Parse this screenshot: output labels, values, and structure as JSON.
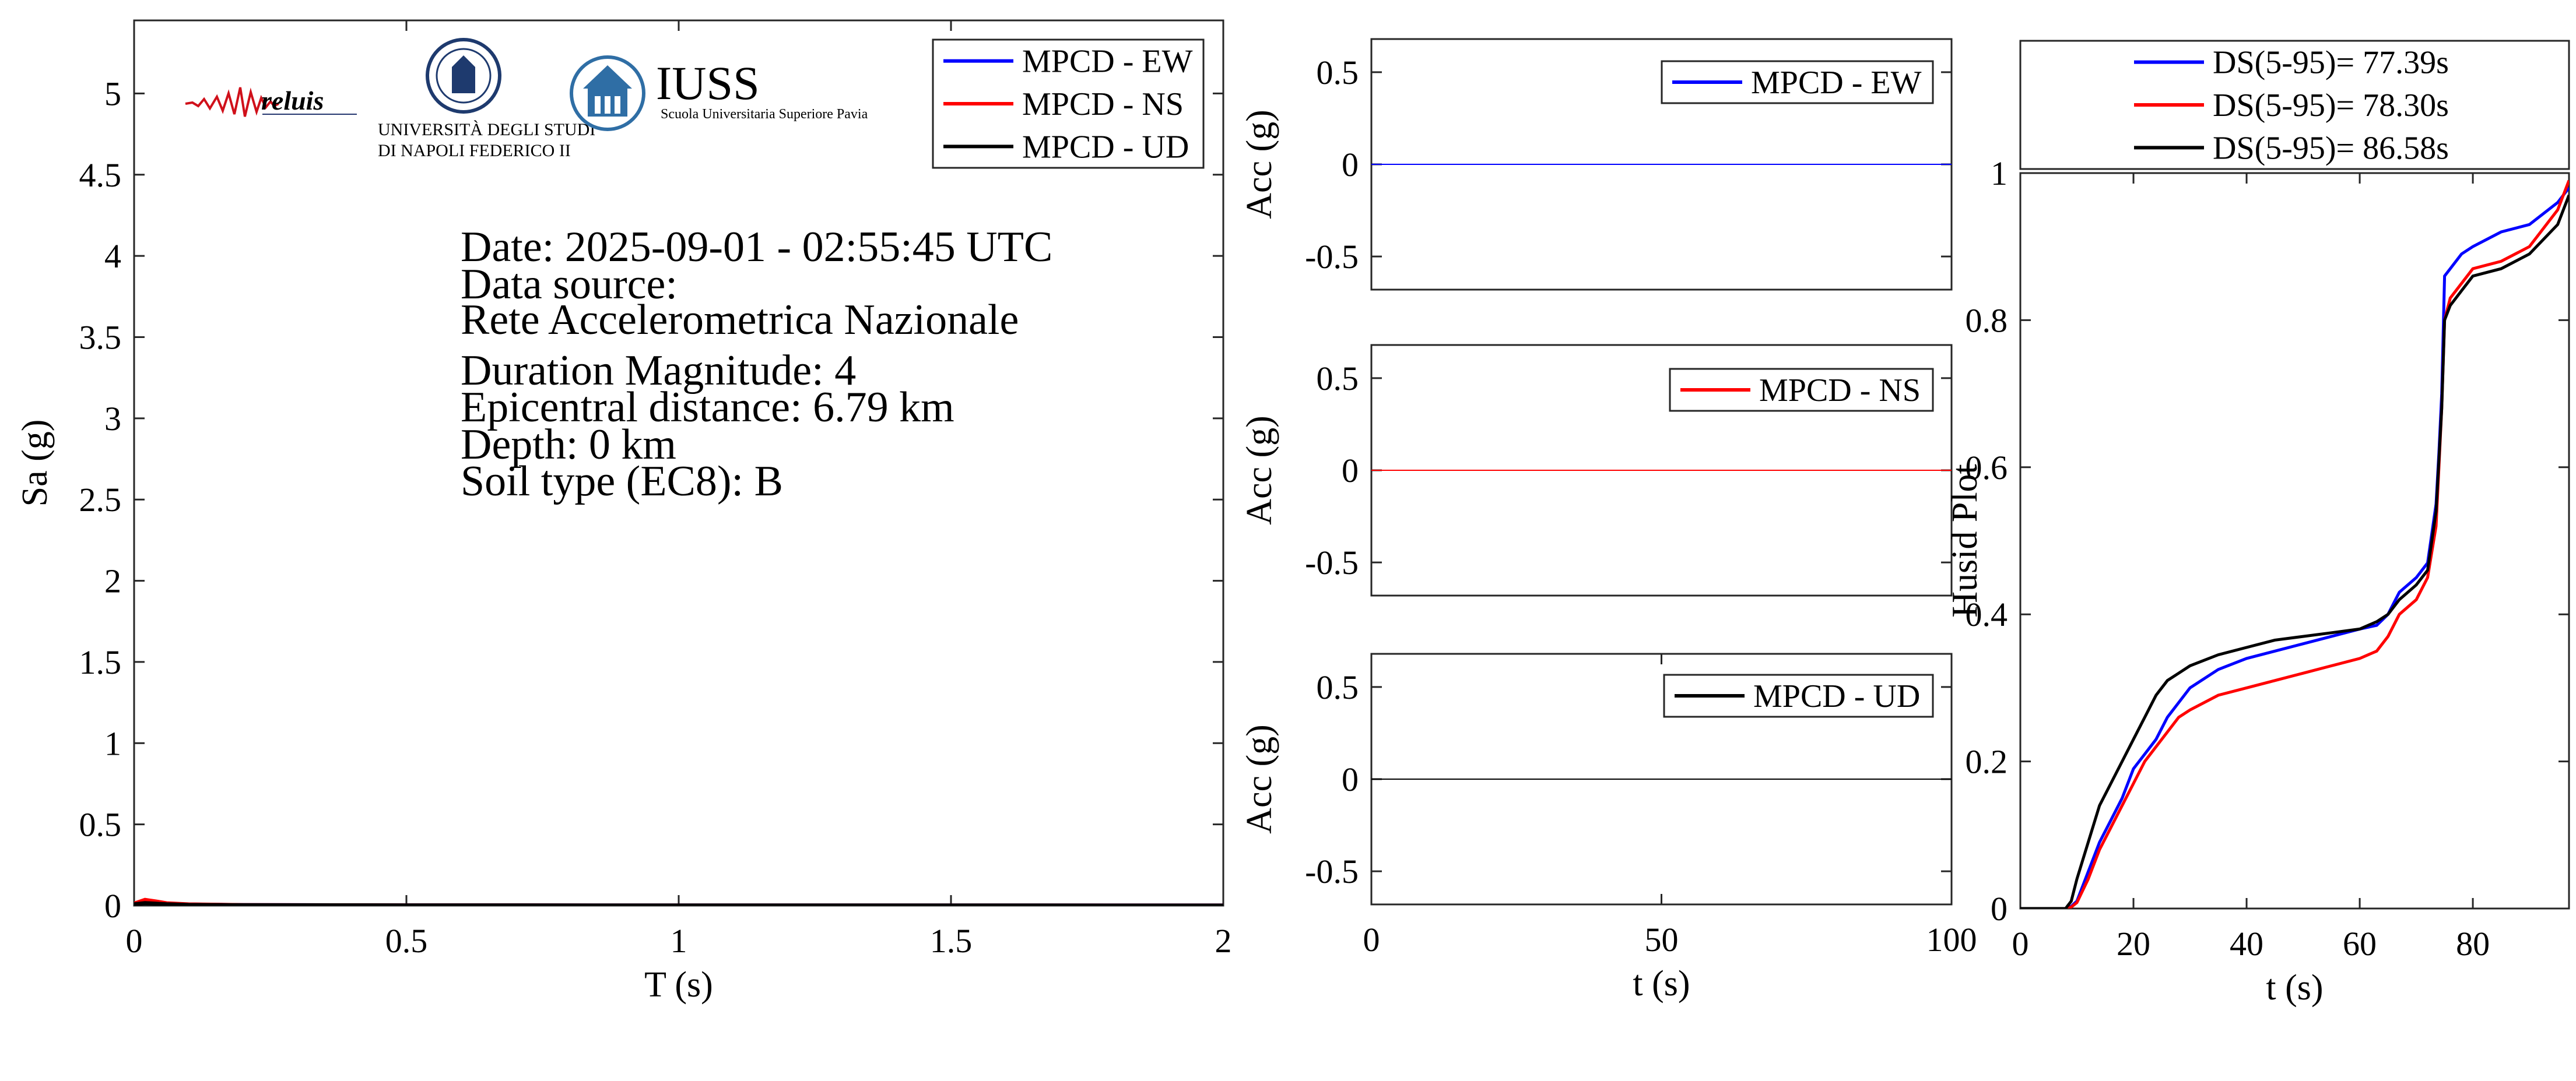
{
  "logos": {
    "reluis": "reluis",
    "unina_line1": "UNIVERSITÀ DEGLI STUDI",
    "unina_line2": "DI NAPOLI FEDERICO II",
    "iuss": "IUSS",
    "iuss_sub": "Scuola Universitaria Superiore Pavia"
  },
  "info": {
    "date": "Date: 2025-09-01 - 02:55:45 UTC",
    "source_label": "Data source:",
    "source": "Rete Accelerometrica Nazionale",
    "magnitude": "Duration Magnitude: 4",
    "distance": "Epicentral distance: 6.79 km",
    "depth": "Depth: 0 km",
    "soil": "Soil type (EC8): B"
  },
  "colors": {
    "ew": "#0000ff",
    "ns": "#ff0000",
    "ud": "#000000"
  },
  "chart_data": [
    {
      "type": "line",
      "xlabel": "T (s)",
      "ylabel": "Sa (g)",
      "xlim": [
        0,
        2
      ],
      "ylim": [
        0,
        5.45
      ],
      "xticks": [
        0,
        0.5,
        1,
        1.5,
        2
      ],
      "xtick_labels": [
        "0",
        "0.5",
        "1",
        "1.5",
        "2"
      ],
      "yticks": [
        0,
        0.5,
        1,
        1.5,
        2,
        2.5,
        3,
        3.5,
        4,
        4.5,
        5
      ],
      "ytick_labels": [
        "0",
        "0.5",
        "1",
        "1.5",
        "2",
        "2.5",
        "3",
        "3.5",
        "4",
        "4.5",
        "5"
      ],
      "legend": "top-right",
      "series": [
        {
          "name": "MPCD - EW",
          "color": "#0000ff",
          "x": [
            0,
            0.02,
            0.04,
            0.06,
            0.1,
            0.2,
            0.5,
            1,
            1.5,
            2
          ],
          "y": [
            0.012,
            0.025,
            0.02,
            0.012,
            0.006,
            0.003,
            0.001,
            0.0005,
            0.0003,
            0.0002
          ]
        },
        {
          "name": "MPCD - NS",
          "color": "#ff0000",
          "x": [
            0,
            0.02,
            0.04,
            0.06,
            0.1,
            0.2,
            0.5,
            1,
            1.5,
            2
          ],
          "y": [
            0.012,
            0.035,
            0.025,
            0.014,
            0.007,
            0.003,
            0.001,
            0.0005,
            0.0003,
            0.0002
          ]
        },
        {
          "name": "MPCD - UD",
          "color": "#000000",
          "x": [
            0,
            0.02,
            0.04,
            0.06,
            0.1,
            0.2,
            0.5,
            1,
            1.5,
            2
          ],
          "y": [
            0.008,
            0.015,
            0.012,
            0.008,
            0.004,
            0.002,
            0.001,
            0.0004,
            0.0002,
            0.0001
          ]
        }
      ]
    },
    {
      "type": "line",
      "xlabel": "",
      "ylabel": "Acc (g)",
      "xlim": [
        0,
        100
      ],
      "ylim": [
        -0.68,
        0.68
      ],
      "xticks": [],
      "xtick_labels": [],
      "yticks": [
        0.5,
        0,
        -0.5
      ],
      "ytick_labels": [
        "0.5",
        "0",
        "-0.5"
      ],
      "legend": "top-right",
      "series": [
        {
          "name": "MPCD - EW",
          "color": "#0000ff",
          "x": [
            0,
            100
          ],
          "y": [
            0,
            0
          ]
        }
      ]
    },
    {
      "type": "line",
      "xlabel": "",
      "ylabel": "Acc (g)",
      "xlim": [
        0,
        100
      ],
      "ylim": [
        -0.68,
        0.68
      ],
      "xticks": [],
      "xtick_labels": [],
      "yticks": [
        0.5,
        0,
        -0.5
      ],
      "ytick_labels": [
        "0.5",
        "0",
        "-0.5"
      ],
      "legend": "top-right",
      "series": [
        {
          "name": "MPCD - NS",
          "color": "#ff0000",
          "x": [
            0,
            100
          ],
          "y": [
            0,
            0
          ]
        }
      ]
    },
    {
      "type": "line",
      "xlabel": "t (s)",
      "ylabel": "Acc (g)",
      "xlim": [
        0,
        100
      ],
      "ylim": [
        -0.68,
        0.68
      ],
      "xticks": [
        0,
        50,
        100
      ],
      "xtick_labels": [
        "0",
        "50",
        "100"
      ],
      "yticks": [
        0.5,
        0,
        -0.5
      ],
      "ytick_labels": [
        "0.5",
        "0",
        "-0.5"
      ],
      "legend": "top-right",
      "series": [
        {
          "name": "MPCD - UD",
          "color": "#000000",
          "x": [
            0,
            100
          ],
          "y": [
            0,
            0
          ]
        }
      ]
    },
    {
      "type": "line",
      "xlabel": "t (s)",
      "ylabel": "Husid Plot",
      "xlim": [
        0,
        97
      ],
      "ylim": [
        0,
        1
      ],
      "xticks": [
        0,
        20,
        40,
        60,
        80
      ],
      "xtick_labels": [
        "0",
        "20",
        "40",
        "60",
        "80"
      ],
      "yticks": [
        0,
        0.2,
        0.4,
        0.6,
        0.8,
        1
      ],
      "ytick_labels": [
        "0",
        "0.2",
        "0.4",
        "0.6",
        "0.8",
        "1"
      ],
      "legend": "top (outside)",
      "series": [
        {
          "name": "DS(5-95)= 77.39s",
          "color": "#0000ff",
          "x": [
            0,
            8,
            9,
            10,
            12,
            14,
            16,
            18,
            20,
            22,
            24,
            26,
            28,
            30,
            35,
            40,
            45,
            50,
            55,
            60,
            63,
            65,
            67,
            70,
            72,
            73.5,
            74,
            74.5,
            75,
            76,
            78,
            80,
            85,
            90,
            95,
            97
          ],
          "y": [
            0,
            0,
            0.003,
            0.01,
            0.05,
            0.09,
            0.12,
            0.15,
            0.19,
            0.21,
            0.23,
            0.26,
            0.28,
            0.3,
            0.325,
            0.34,
            0.35,
            0.36,
            0.37,
            0.38,
            0.385,
            0.4,
            0.43,
            0.45,
            0.47,
            0.55,
            0.62,
            0.7,
            0.86,
            0.87,
            0.89,
            0.9,
            0.92,
            0.93,
            0.96,
            0.98
          ]
        },
        {
          "name": "DS(5-95)= 78.30s",
          "color": "#ff0000",
          "x": [
            0,
            8,
            9,
            10,
            12,
            14,
            16,
            18,
            20,
            22,
            24,
            26,
            28,
            30,
            35,
            40,
            45,
            50,
            55,
            60,
            63,
            65,
            67,
            70,
            72,
            73.5,
            74,
            74.5,
            75,
            76,
            78,
            80,
            85,
            90,
            95,
            97
          ],
          "y": [
            0,
            0,
            0.002,
            0.008,
            0.04,
            0.08,
            0.11,
            0.14,
            0.17,
            0.2,
            0.22,
            0.24,
            0.26,
            0.27,
            0.29,
            0.3,
            0.31,
            0.32,
            0.33,
            0.34,
            0.35,
            0.37,
            0.4,
            0.42,
            0.45,
            0.52,
            0.6,
            0.68,
            0.8,
            0.83,
            0.85,
            0.87,
            0.88,
            0.9,
            0.95,
            0.99
          ]
        },
        {
          "name": "DS(5-95)= 86.58s",
          "color": "#000000",
          "x": [
            0,
            8,
            9,
            10,
            12,
            14,
            16,
            18,
            20,
            22,
            24,
            26,
            28,
            30,
            35,
            40,
            45,
            50,
            55,
            60,
            63,
            65,
            67,
            70,
            72,
            73.5,
            74,
            74.5,
            75,
            76,
            78,
            80,
            85,
            90,
            95,
            97
          ],
          "y": [
            0,
            0,
            0.01,
            0.04,
            0.09,
            0.14,
            0.17,
            0.2,
            0.23,
            0.26,
            0.29,
            0.31,
            0.32,
            0.33,
            0.345,
            0.355,
            0.365,
            0.37,
            0.375,
            0.38,
            0.39,
            0.4,
            0.42,
            0.44,
            0.46,
            0.54,
            0.61,
            0.68,
            0.8,
            0.82,
            0.84,
            0.86,
            0.87,
            0.89,
            0.93,
            0.97
          ]
        }
      ]
    }
  ]
}
